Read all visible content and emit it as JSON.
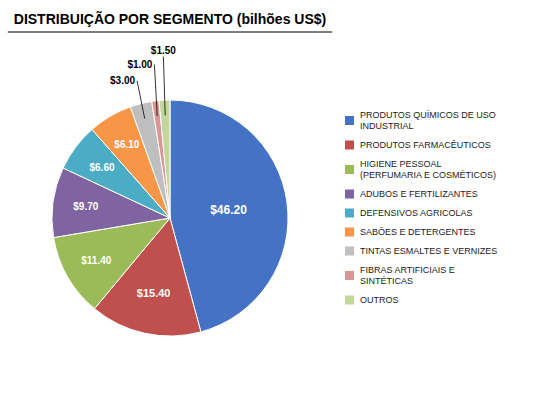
{
  "chart_data": {
    "type": "pie",
    "title": "DISTRIBUIÇÃO POR SEGMENTO (bilhões US$)",
    "categories": [
      "PRODUTOS QUÍMICOS DE USO\nINDUSTRIAL",
      "PRODUTOS FARMACÊUTICOS",
      "HIGIENE PESSOAL\n(PERFUMARIA E COSMÉTICOS)",
      "ADUBOS E FERTILIZANTES",
      "DEFENSIVOS AGRICOLAS",
      "SABÕES E DETERGENTES",
      "TINTAS ESMALTES E VERNIZES",
      "FIBRAS ARTIFICIAIS E\nSINTÉTICAS",
      "OUTROS"
    ],
    "values": [
      46.2,
      15.4,
      11.4,
      9.7,
      6.6,
      6.1,
      3.0,
      1.0,
      1.5
    ],
    "value_labels": [
      "$46.20",
      "$15.40",
      "$11.40",
      "$9.70",
      "$6.60",
      "$6.10",
      "$3.00",
      "$1.00",
      "$1.50"
    ],
    "colors": [
      "#4472C4",
      "#C0504D",
      "#9BBB59",
      "#8064A2",
      "#4BACC6",
      "#F79646",
      "#BFBFBF",
      "#D99694",
      "#C3D69B"
    ],
    "data_labels": true,
    "legend": "right"
  }
}
